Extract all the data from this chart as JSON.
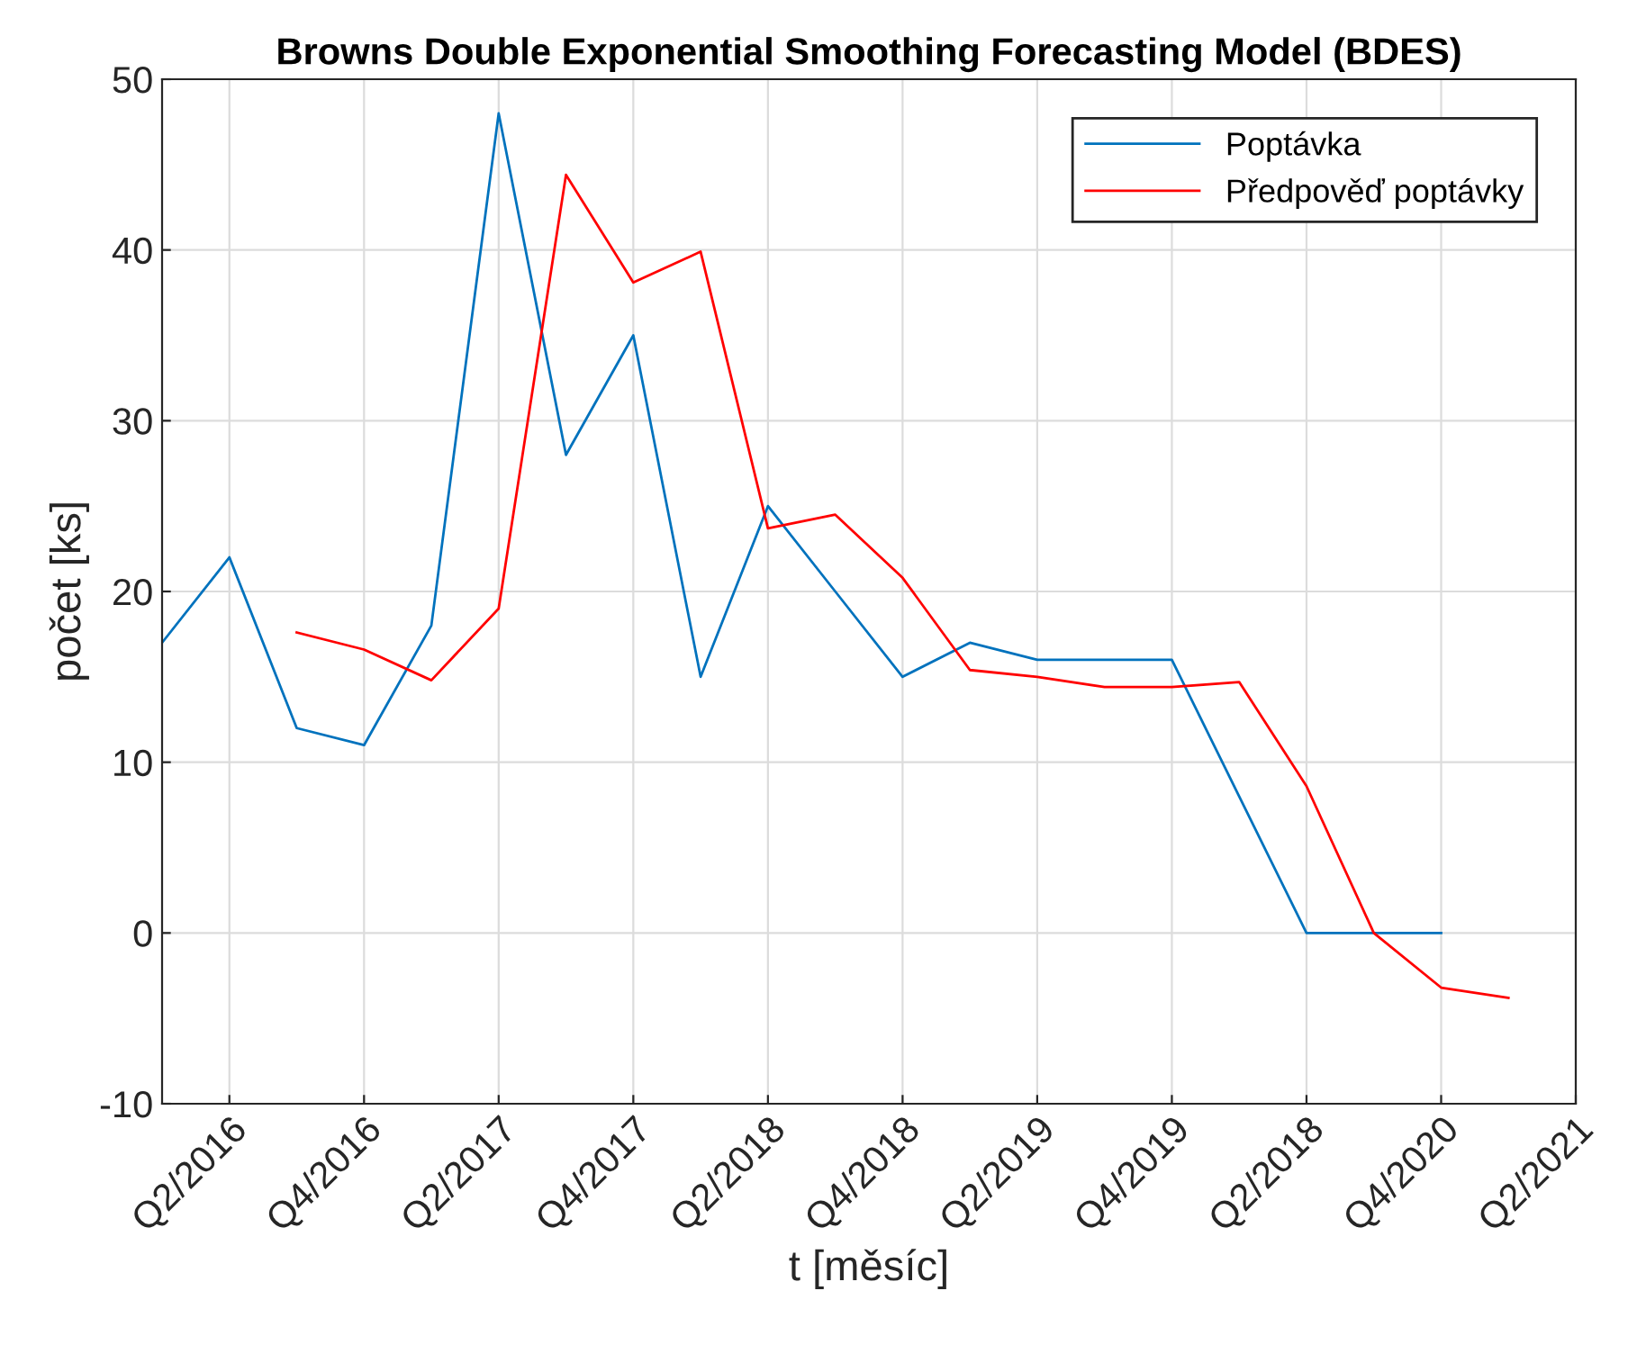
{
  "chart_data": {
    "type": "line",
    "title": "Browns Double Exponential Smoothing Forecasting Model (BDES)",
    "xlabel": "t [měsíc]",
    "ylabel": "počet [ks]",
    "categories": [
      null,
      "Q2/2016",
      null,
      "Q4/2016",
      null,
      "Q2/2017",
      null,
      "Q4/2017",
      null,
      "Q2/2018",
      null,
      "Q4/2018",
      null,
      "Q2/2019",
      null,
      "Q4/2019",
      null,
      "Q2/2018",
      null,
      "Q4/2020",
      null,
      "Q2/2021"
    ],
    "series": [
      {
        "name": "Poptávka",
        "color": "#0072bd",
        "values": [
          17,
          22,
          12,
          11,
          18,
          48,
          28,
          35,
          15,
          25,
          20,
          15,
          17,
          16,
          16,
          16,
          8,
          0,
          0,
          0,
          null,
          null
        ]
      },
      {
        "name": "Předpověď poptávky",
        "color": "#ff0000",
        "values": [
          null,
          null,
          17.6,
          16.6,
          14.8,
          19,
          44.4,
          38.1,
          39.9,
          23.7,
          24.5,
          20.8,
          15.4,
          15,
          14.4,
          14.4,
          14.7,
          8.6,
          0,
          -3.2,
          -3.8,
          null
        ]
      }
    ],
    "ylim": [
      -10,
      50
    ],
    "yticks": [
      -10,
      0,
      10,
      20,
      30,
      40,
      50
    ],
    "grid": true,
    "legend": "top right",
    "marker": "none",
    "line_style": "solid"
  }
}
